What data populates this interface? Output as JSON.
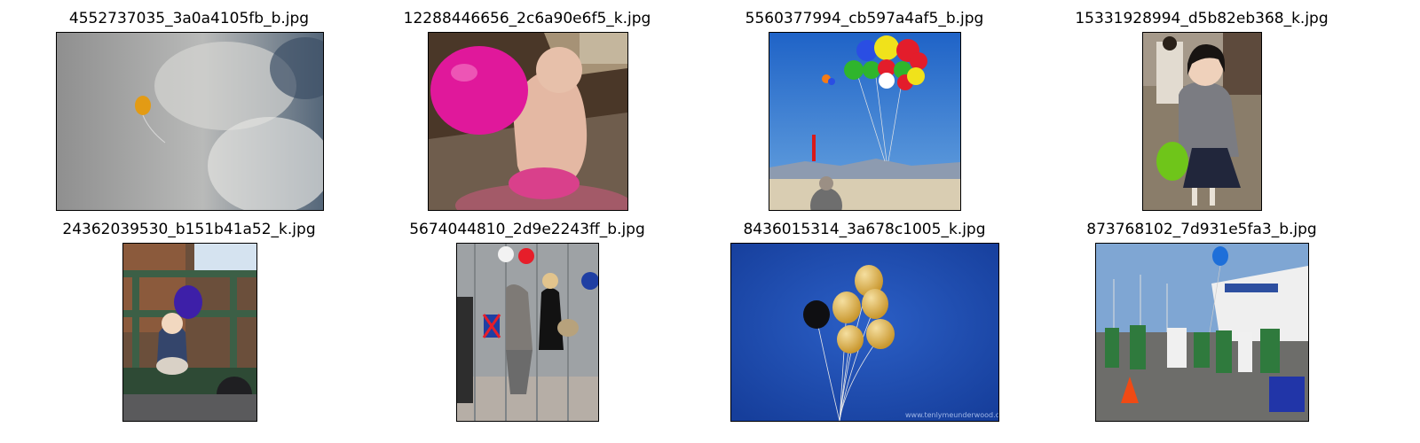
{
  "grid": {
    "tiles": [
      {
        "filename": "4552737035_3a0a4105fb_b.jpg",
        "description": "single orange balloon against a cloudy grey sky"
      },
      {
        "filename": "12288446656_2c6a90e6f5_k.jpg",
        "description": "baby sitting on a wooden floor holding a large pink balloon"
      },
      {
        "filename": "5560377994_cb597a4af5_b.jpg",
        "description": "bunch of colorful balloons over a desert with blue sky"
      },
      {
        "filename": "15331928994_d5b82eb368_k.jpg",
        "description": "young child in a grey cardigan holding a green balloon"
      },
      {
        "filename": "24362039530_b151b41a52_k.jpg",
        "description": "toddler sitting on a railway cart holding a purple balloon"
      },
      {
        "filename": "5674044810_2d9e2243ff_b.jpg",
        "description": "women on a street behind barriers with union jack balloons"
      },
      {
        "filename": "8436015314_3a678c1005_k.jpg",
        "description": "cluster of gold and black balloons against a deep blue background"
      },
      {
        "filename": "873768102_7d931e5fa3_b.jpg",
        "description": "group of people in green aprons outdoors with a blue balloon"
      }
    ],
    "watermark": "www.tenlymeunderwood.com"
  }
}
